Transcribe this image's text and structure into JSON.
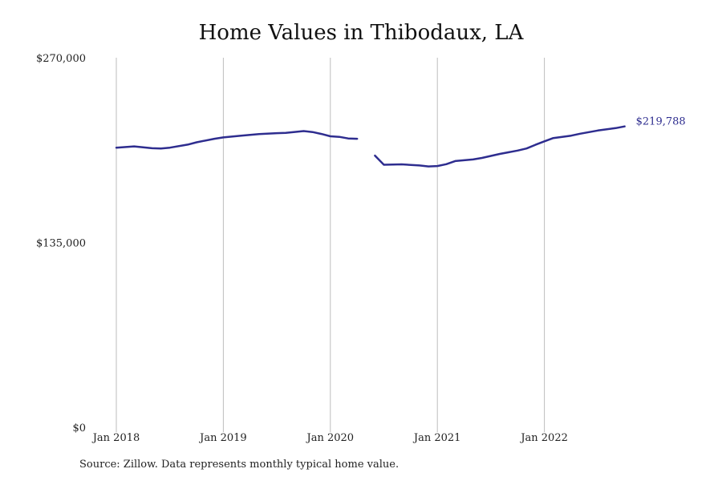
{
  "chart_data": {
    "type": "line",
    "title": "Home Values in Thibodaux, LA",
    "xlabel": "",
    "ylabel": "",
    "ylim": [
      0,
      270000
    ],
    "y_ticks": [
      {
        "value": 0,
        "label": "$0"
      },
      {
        "value": 135000,
        "label": "$135,000"
      },
      {
        "value": 270000,
        "label": "$270,000"
      }
    ],
    "x_ticks": [
      {
        "value": "2018-01",
        "label": "Jan 2018"
      },
      {
        "value": "2019-01",
        "label": "Jan 2019"
      },
      {
        "value": "2020-01",
        "label": "Jan 2020"
      },
      {
        "value": "2021-01",
        "label": "Jan 2021"
      },
      {
        "value": "2022-01",
        "label": "Jan 2022"
      }
    ],
    "grid": "vertical",
    "series": [
      {
        "color": "#2e2d8f",
        "points": [
          {
            "x": "2018-01",
            "y": 204300
          },
          {
            "x": "2018-03",
            "y": 205200
          },
          {
            "x": "2018-05",
            "y": 203900
          },
          {
            "x": "2018-06",
            "y": 203700
          },
          {
            "x": "2018-07",
            "y": 204300
          },
          {
            "x": "2018-09",
            "y": 206500
          },
          {
            "x": "2018-10",
            "y": 208200
          },
          {
            "x": "2018-12",
            "y": 210800
          },
          {
            "x": "2019-01",
            "y": 211800
          },
          {
            "x": "2019-03",
            "y": 213100
          },
          {
            "x": "2019-05",
            "y": 214200
          },
          {
            "x": "2019-07",
            "y": 214900
          },
          {
            "x": "2019-08",
            "y": 215100
          },
          {
            "x": "2019-10",
            "y": 216400
          },
          {
            "x": "2019-11",
            "y": 215700
          },
          {
            "x": "2019-12",
            "y": 214300
          },
          {
            "x": "2020-01",
            "y": 212600
          },
          {
            "x": "2020-02",
            "y": 212200
          },
          {
            "x": "2020-03",
            "y": 211000
          },
          {
            "x": "2020-04",
            "y": 210800
          },
          {
            "x": "2020-06",
            "y": null
          },
          {
            "x": "2020-05",
            "y": null
          },
          {
            "x": "2020-06",
            "y": 198500
          },
          {
            "x": "2020-07",
            "y": 191800
          },
          {
            "x": "2020-09",
            "y": 192100
          },
          {
            "x": "2020-11",
            "y": 191300
          },
          {
            "x": "2020-12",
            "y": 190600
          },
          {
            "x": "2021-01",
            "y": 190900
          },
          {
            "x": "2021-02",
            "y": 192200
          },
          {
            "x": "2021-03",
            "y": 194500
          },
          {
            "x": "2021-05",
            "y": 195700
          },
          {
            "x": "2021-06",
            "y": 196800
          },
          {
            "x": "2021-08",
            "y": 199700
          },
          {
            "x": "2021-10",
            "y": 202200
          },
          {
            "x": "2021-11",
            "y": 203700
          },
          {
            "x": "2021-12",
            "y": 206400
          },
          {
            "x": "2022-01",
            "y": 208900
          },
          {
            "x": "2022-02",
            "y": 211300
          },
          {
            "x": "2022-04",
            "y": 213100
          },
          {
            "x": "2022-05",
            "y": 214500
          },
          {
            "x": "2022-07",
            "y": 216800
          },
          {
            "x": "2022-09",
            "y": 218600
          },
          {
            "x": "2022-10",
            "y": 219788
          }
        ],
        "end_label": "$219,788"
      }
    ],
    "source_note": "Source: Zillow. Data represents monthly typical home value."
  }
}
